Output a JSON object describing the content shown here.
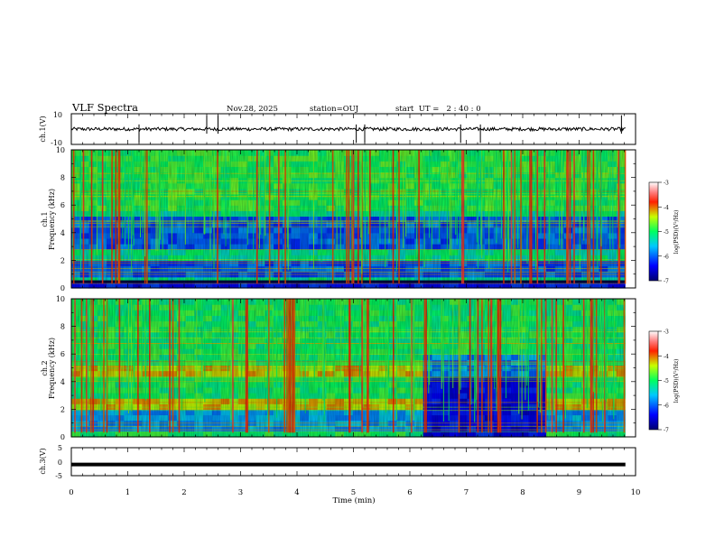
{
  "header": {
    "title": "VLF Spectra",
    "date": "Nov.28, 2025",
    "station": "station=OUJ",
    "start": "start  UT =   2 : 40 : 0"
  },
  "chart_data": [
    {
      "type": "line",
      "name": "ch1-waveform",
      "ylabel": "ch.1(V)",
      "xlim": [
        0,
        10
      ],
      "ylim": [
        -10,
        10
      ],
      "y_ticks": [
        "10",
        "-10"
      ],
      "baseline": 0,
      "notable_spike_times_min": [
        1.2,
        2.4,
        2.6,
        5.05,
        5.2,
        6.9,
        7.25,
        9.75
      ]
    },
    {
      "type": "heatmap",
      "name": "ch1-spectrogram",
      "ylabel": "ch.1\nFrequency (kHz)",
      "xlim": [
        0,
        10
      ],
      "ylim": [
        0,
        10
      ],
      "y_ticks": [
        "0",
        "2",
        "4",
        "6",
        "8",
        "10"
      ],
      "colorbar": {
        "label": "log(PSD)(V²/Hz)",
        "ticks": [
          "-3",
          "-4",
          "-5",
          "-6",
          "-7"
        ],
        "range": [
          -7,
          -3
        ]
      },
      "dark_bands_khz": [
        [
          3.0,
          5.0
        ],
        [
          1.0,
          2.0
        ]
      ],
      "strong_line_khz": 0.5
    },
    {
      "type": "heatmap",
      "name": "ch2-spectrogram",
      "ylabel": "ch.2\nFrequency (kHz)",
      "xlim": [
        0,
        10
      ],
      "ylim": [
        0,
        10
      ],
      "y_ticks": [
        "0",
        "2",
        "4",
        "6",
        "8",
        "10"
      ],
      "colorbar": {
        "label": "log(PSD)(V²/Hz)",
        "ticks": [
          "-3",
          "-4",
          "-5",
          "-6",
          "-7"
        ],
        "range": [
          -7,
          -3
        ]
      },
      "bright_bands_khz": [
        [
          4.6,
          5.0
        ],
        [
          2.2,
          2.8
        ]
      ],
      "quiet_interval_min": [
        6.3,
        8.4
      ]
    },
    {
      "type": "line",
      "name": "ch3-waveform",
      "ylabel": "ch.3(V)",
      "xlim": [
        0,
        10
      ],
      "ylim": [
        -5,
        5
      ],
      "y_ticks": [
        "5",
        "0",
        "-5"
      ],
      "level": -1
    }
  ],
  "x_axis": {
    "label": "Time (min)",
    "ticks": [
      "0",
      "1",
      "2",
      "3",
      "4",
      "5",
      "6",
      "7",
      "8",
      "9",
      "10"
    ],
    "data_end_min": 9.82
  }
}
